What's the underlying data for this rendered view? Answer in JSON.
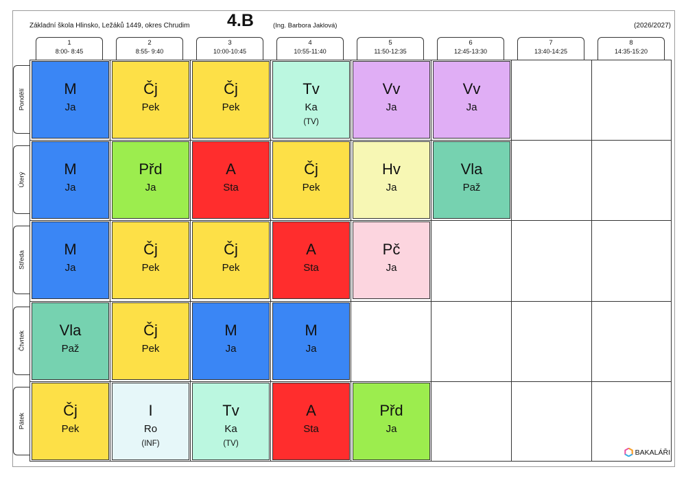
{
  "header": {
    "school": "Základní škola Hlinsko, Ležáků 1449, okres Chrudim",
    "class_name": "4.B",
    "teacher": "(Ing. Barbora Jaklová)",
    "year": "(2026/2027)"
  },
  "periods": [
    {
      "num": "1",
      "time": "8:00- 8:45"
    },
    {
      "num": "2",
      "time": "8:55- 9:40"
    },
    {
      "num": "3",
      "time": "10:00-10:45"
    },
    {
      "num": "4",
      "time": "10:55-11:40"
    },
    {
      "num": "5",
      "time": "11:50-12:35"
    },
    {
      "num": "6",
      "time": "12:45-13:30"
    },
    {
      "num": "7",
      "time": "13:40-14:25"
    },
    {
      "num": "8",
      "time": "14:35-15:20"
    }
  ],
  "days": [
    {
      "label": "Pondělí",
      "lessons": [
        {
          "subject": "M",
          "teacher": "Ja",
          "color": "#3a86f5"
        },
        {
          "subject": "Čj",
          "teacher": "Pek",
          "color": "#fde047"
        },
        {
          "subject": "Čj",
          "teacher": "Pek",
          "color": "#fde047"
        },
        {
          "subject": "Tv",
          "teacher": "Ka",
          "room": "(TV)",
          "color": "#bbf7e0"
        },
        {
          "subject": "Vv",
          "teacher": "Ja",
          "color": "#e0aef5"
        },
        {
          "subject": "Vv",
          "teacher": "Ja",
          "color": "#e0aef5"
        }
      ]
    },
    {
      "label": "Úterý",
      "lessons": [
        {
          "subject": "M",
          "teacher": "Ja",
          "color": "#3a86f5"
        },
        {
          "subject": "Přd",
          "teacher": "Ja",
          "color": "#9ced4e"
        },
        {
          "subject": "A",
          "teacher": "Sta",
          "color": "#ff2d2d"
        },
        {
          "subject": "Čj",
          "teacher": "Pek",
          "color": "#fde047"
        },
        {
          "subject": "Hv",
          "teacher": "Ja",
          "color": "#f7f7b4"
        },
        {
          "subject": "Vla",
          "teacher": "Paž",
          "color": "#76d2b0"
        }
      ]
    },
    {
      "label": "Středa",
      "lessons": [
        {
          "subject": "M",
          "teacher": "Ja",
          "color": "#3a86f5"
        },
        {
          "subject": "Čj",
          "teacher": "Pek",
          "color": "#fde047"
        },
        {
          "subject": "Čj",
          "teacher": "Pek",
          "color": "#fde047"
        },
        {
          "subject": "A",
          "teacher": "Sta",
          "color": "#ff2d2d"
        },
        {
          "subject": "Pč",
          "teacher": "Ja",
          "color": "#fcd5df"
        }
      ]
    },
    {
      "label": "Čtvrtek",
      "lessons": [
        {
          "subject": "Vla",
          "teacher": "Paž",
          "color": "#76d2b0"
        },
        {
          "subject": "Čj",
          "teacher": "Pek",
          "color": "#fde047"
        },
        {
          "subject": "M",
          "teacher": "Ja",
          "color": "#3a86f5"
        },
        {
          "subject": "M",
          "teacher": "Ja",
          "color": "#3a86f5"
        }
      ]
    },
    {
      "label": "Pátek",
      "lessons": [
        {
          "subject": "Čj",
          "teacher": "Pek",
          "color": "#fde047"
        },
        {
          "subject": "I",
          "teacher": "Ro",
          "room": "(INF)",
          "color": "#e6f7f9"
        },
        {
          "subject": "Tv",
          "teacher": "Ka",
          "room": "(TV)",
          "color": "#bbf7e0"
        },
        {
          "subject": "A",
          "teacher": "Sta",
          "color": "#ff2d2d"
        },
        {
          "subject": "Přd",
          "teacher": "Ja",
          "color": "#9ced4e"
        }
      ]
    }
  ],
  "footer": {
    "logo_text": "BAKALÁŘI",
    "logo_icon": "bakalari-hexagon-icon"
  }
}
